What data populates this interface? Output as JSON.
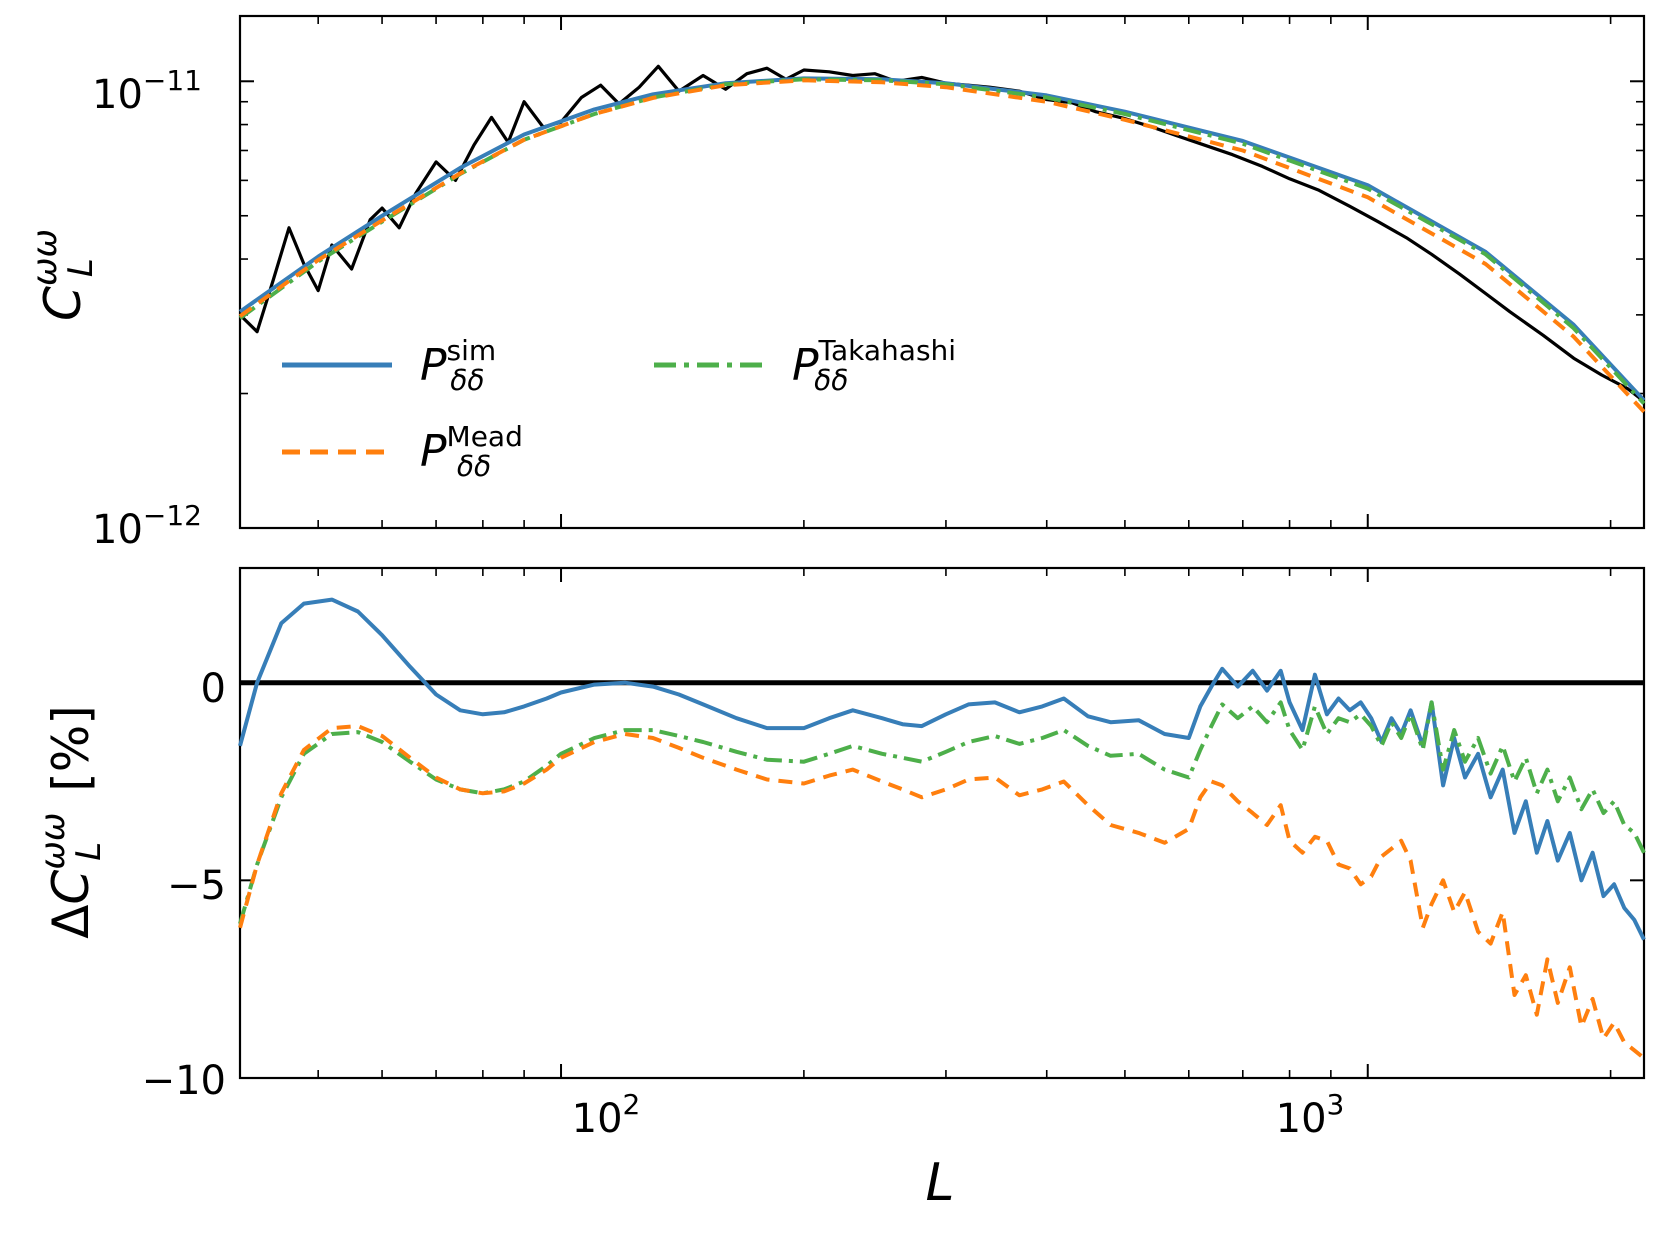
{
  "chart_data": [
    {
      "type": "line",
      "panel": "top",
      "yscale": "log",
      "xscale": "log",
      "xlim": [
        40,
        2200
      ],
      "ylim": [
        1e-12,
        1.4e-11
      ],
      "ylabel": {
        "base": "C",
        "sup": "ωω",
        "sub": "L"
      },
      "yticks": [
        {
          "value": 1e-11,
          "base": "10",
          "exp": "−11"
        },
        {
          "value": 1e-12,
          "base": "10",
          "exp": "−12"
        }
      ],
      "legend": {
        "placement": "lower-left",
        "entries": [
          {
            "key": "sim",
            "base": "P",
            "sup": "sim",
            "sub": "δδ"
          },
          {
            "key": "takahashi",
            "base": "P",
            "sup": "Takahashi",
            "sub": "δδ"
          },
          {
            "key": "mead",
            "base": "P",
            "sup": "Mead",
            "sub": "δδ"
          }
        ]
      },
      "series": [
        {
          "key": "measured",
          "name": "simulation measurement",
          "color": "#000000",
          "style": "solid",
          "x": [
            40,
            42,
            44,
            46,
            48,
            50,
            52,
            55,
            58,
            60,
            63,
            66,
            70,
            74,
            78,
            82,
            86,
            90,
            95,
            100,
            106,
            112,
            118,
            125,
            132,
            140,
            150,
            160,
            170,
            180,
            190,
            200,
            215,
            230,
            245,
            260,
            280,
            300,
            320,
            340,
            370,
            400,
            430,
            460,
            500,
            540,
            580,
            620,
            680,
            740,
            800,
            870,
            950,
            1030,
            1120,
            1200,
            1300,
            1400,
            1500,
            1650,
            1800,
            1950,
            2100,
            2200
          ],
          "y": [
            3e-12,
            2.75e-12,
            3.6e-12,
            4.7e-12,
            3.9e-12,
            3.4e-12,
            4.3e-12,
            3.8e-12,
            4.9e-12,
            5.2e-12,
            4.7e-12,
            5.6e-12,
            6.6e-12,
            6e-12,
            7.2e-12,
            8.3e-12,
            7.3e-12,
            9e-12,
            7.9e-12,
            8.1e-12,
            9.2e-12,
            9.8e-12,
            8.9e-12,
            9.7e-12,
            1.08e-11,
            9.5e-12,
            1.03e-11,
            9.6e-12,
            1.04e-11,
            1.07e-11,
            1.01e-11,
            1.06e-11,
            1.05e-11,
            1.03e-11,
            1.04e-11,
            1e-11,
            1.02e-11,
            9.9e-12,
            9.8e-12,
            9.7e-12,
            9.5e-12,
            9.1e-12,
            8.95e-12,
            8.55e-12,
            8.25e-12,
            7.9e-12,
            7.55e-12,
            7.25e-12,
            6.85e-12,
            6.45e-12,
            6.05e-12,
            5.7e-12,
            5.25e-12,
            4.85e-12,
            4.45e-12,
            4.1e-12,
            3.7e-12,
            3.35e-12,
            3.05e-12,
            2.7e-12,
            2.4e-12,
            2.2e-12,
            2.05e-12,
            1.92e-12
          ]
        },
        {
          "key": "sim",
          "name": "P sim",
          "color": "#377eb8",
          "style": "solid",
          "x": [
            40,
            50,
            60,
            75,
            90,
            110,
            130,
            160,
            200,
            250,
            300,
            400,
            500,
            700,
            1000,
            1400,
            1800,
            2200
          ],
          "y": [
            3.05e-12,
            4.05e-12,
            5e-12,
            6.4e-12,
            7.6e-12,
            8.65e-12,
            9.35e-12,
            9.9e-12,
            1.015e-11,
            1.01e-11,
            9.9e-12,
            9.3e-12,
            8.55e-12,
            7.35e-12,
            5.85e-12,
            4.15e-12,
            2.85e-12,
            1.93e-12
          ]
        },
        {
          "key": "takahashi",
          "name": "P Takahashi",
          "color": "#4daf4a",
          "style": "dashdot",
          "x": [
            40,
            50,
            60,
            75,
            90,
            110,
            130,
            160,
            200,
            250,
            300,
            400,
            500,
            700,
            1000,
            1400,
            1800,
            2200
          ],
          "y": [
            2.95e-12,
            3.95e-12,
            4.85e-12,
            6.2e-12,
            7.4e-12,
            8.45e-12,
            9.2e-12,
            9.85e-12,
            1.01e-11,
            1.005e-11,
            9.85e-12,
            9.2e-12,
            8.45e-12,
            7.25e-12,
            5.75e-12,
            4.1e-12,
            2.8e-12,
            1.9e-12
          ]
        },
        {
          "key": "mead",
          "name": "P Mead",
          "color": "#ff7f0e",
          "style": "dashed",
          "x": [
            40,
            50,
            60,
            75,
            90,
            110,
            130,
            160,
            200,
            250,
            300,
            400,
            500,
            700,
            1000,
            1400,
            1800,
            2200
          ],
          "y": [
            2.98e-12,
            3.98e-12,
            4.88e-12,
            6.22e-12,
            7.4e-12,
            8.45e-12,
            9.18e-12,
            9.8e-12,
            1.005e-11,
            9.95e-12,
            9.7e-12,
            9e-12,
            8.2e-12,
            7e-12,
            5.5e-12,
            3.9e-12,
            2.68e-12,
            1.82e-12
          ]
        }
      ]
    },
    {
      "type": "line",
      "panel": "bottom",
      "xscale": "log",
      "xlim": [
        40,
        2200
      ],
      "ylim": [
        -10,
        2.9
      ],
      "xlabel": "L",
      "ylabel": {
        "prefix": "Δ",
        "base": "C",
        "sup": "ωω",
        "sub": "L",
        "suffix": "[%]"
      },
      "yticks": [
        {
          "value": 0,
          "label": "0"
        },
        {
          "value": -5,
          "label": "−5"
        },
        {
          "value": -10,
          "label": "−10"
        }
      ],
      "xticks": [
        {
          "value": 100,
          "base": "10",
          "exp": "2"
        },
        {
          "value": 1000,
          "base": "10",
          "exp": "3"
        }
      ],
      "series": [
        {
          "key": "zero",
          "name": "zero line",
          "color": "#000000",
          "style": "solid",
          "x": [
            40,
            2200
          ],
          "y": [
            0,
            0
          ]
        },
        {
          "key": "sim",
          "name": "P sim",
          "color": "#377eb8",
          "style": "solid",
          "x": [
            40,
            42,
            45,
            48,
            52,
            56,
            60,
            65,
            70,
            75,
            80,
            85,
            90,
            96,
            100,
            110,
            120,
            130,
            140,
            150,
            165,
            180,
            200,
            215,
            230,
            250,
            265,
            280,
            300,
            320,
            345,
            370,
            395,
            420,
            450,
            480,
            520,
            560,
            600,
            620,
            640,
            660,
            690,
            720,
            750,
            780,
            800,
            830,
            860,
            890,
            920,
            950,
            980,
            1010,
            1040,
            1070,
            1100,
            1130,
            1170,
            1200,
            1240,
            1280,
            1320,
            1370,
            1420,
            1470,
            1520,
            1570,
            1620,
            1670,
            1720,
            1780,
            1840,
            1900,
            1960,
            2020,
            2080,
            2140,
            2200
          ],
          "y": [
            -1.6,
            0.0,
            1.5,
            2.0,
            2.1,
            1.8,
            1.2,
            0.4,
            -0.3,
            -0.7,
            -0.8,
            -0.75,
            -0.6,
            -0.4,
            -0.25,
            -0.05,
            0.0,
            -0.1,
            -0.3,
            -0.55,
            -0.9,
            -1.15,
            -1.15,
            -0.9,
            -0.7,
            -0.9,
            -1.05,
            -1.1,
            -0.8,
            -0.55,
            -0.5,
            -0.75,
            -0.6,
            -0.4,
            -0.85,
            -1.0,
            -0.95,
            -1.3,
            -1.4,
            -0.6,
            -0.1,
            0.35,
            -0.1,
            0.3,
            -0.2,
            0.3,
            -0.5,
            -1.2,
            0.2,
            -0.8,
            -0.4,
            -0.7,
            -0.5,
            -0.9,
            -1.5,
            -0.9,
            -1.3,
            -0.7,
            -1.6,
            -0.5,
            -2.6,
            -1.4,
            -2.4,
            -1.8,
            -2.9,
            -2.2,
            -3.8,
            -3.0,
            -4.3,
            -3.5,
            -4.5,
            -3.8,
            -5.0,
            -4.3,
            -5.4,
            -5.1,
            -5.7,
            -6.0,
            -6.5
          ]
        },
        {
          "key": "takahashi",
          "name": "P Takahashi",
          "color": "#4daf4a",
          "style": "dashdot",
          "x": [
            40,
            42,
            45,
            48,
            52,
            56,
            60,
            65,
            70,
            75,
            80,
            85,
            90,
            96,
            100,
            110,
            120,
            130,
            140,
            150,
            165,
            180,
            200,
            215,
            230,
            250,
            265,
            280,
            300,
            320,
            345,
            370,
            395,
            420,
            450,
            480,
            520,
            560,
            600,
            620,
            640,
            660,
            690,
            720,
            750,
            780,
            800,
            830,
            860,
            890,
            920,
            950,
            980,
            1010,
            1040,
            1070,
            1100,
            1130,
            1170,
            1200,
            1240,
            1280,
            1320,
            1370,
            1420,
            1470,
            1520,
            1570,
            1620,
            1670,
            1720,
            1780,
            1840,
            1900,
            1960,
            2020,
            2080,
            2140,
            2200
          ],
          "y": [
            -6.1,
            -4.6,
            -2.9,
            -1.8,
            -1.3,
            -1.25,
            -1.5,
            -2.0,
            -2.45,
            -2.7,
            -2.8,
            -2.7,
            -2.5,
            -2.1,
            -1.8,
            -1.4,
            -1.2,
            -1.2,
            -1.35,
            -1.5,
            -1.75,
            -1.95,
            -2.0,
            -1.8,
            -1.6,
            -1.8,
            -1.9,
            -2.0,
            -1.75,
            -1.5,
            -1.35,
            -1.55,
            -1.4,
            -1.2,
            -1.6,
            -1.85,
            -1.8,
            -2.2,
            -2.4,
            -1.7,
            -1.1,
            -0.55,
            -0.9,
            -0.6,
            -1.0,
            -0.5,
            -1.2,
            -1.7,
            -0.6,
            -1.3,
            -0.9,
            -1.0,
            -0.8,
            -1.1,
            -1.6,
            -1.0,
            -1.4,
            -0.8,
            -1.7,
            -0.5,
            -2.2,
            -1.2,
            -2.0,
            -1.4,
            -2.3,
            -1.6,
            -2.5,
            -1.9,
            -2.8,
            -2.2,
            -3.0,
            -2.4,
            -3.2,
            -2.7,
            -3.3,
            -3.0,
            -3.6,
            -3.8,
            -4.3
          ]
        },
        {
          "key": "mead",
          "name": "P Mead",
          "color": "#ff7f0e",
          "style": "dashed",
          "x": [
            40,
            42,
            45,
            48,
            52,
            56,
            60,
            65,
            70,
            75,
            80,
            85,
            90,
            96,
            100,
            110,
            120,
            130,
            140,
            150,
            165,
            180,
            200,
            215,
            230,
            250,
            265,
            280,
            300,
            320,
            345,
            370,
            395,
            420,
            450,
            480,
            520,
            560,
            600,
            620,
            640,
            660,
            690,
            720,
            750,
            780,
            800,
            830,
            860,
            890,
            920,
            950,
            980,
            1010,
            1040,
            1070,
            1100,
            1130,
            1170,
            1200,
            1240,
            1280,
            1320,
            1370,
            1420,
            1470,
            1520,
            1570,
            1620,
            1670,
            1720,
            1780,
            1840,
            1900,
            1960,
            2020,
            2080,
            2140,
            2200
          ],
          "y": [
            -6.2,
            -4.6,
            -2.8,
            -1.7,
            -1.15,
            -1.1,
            -1.35,
            -1.9,
            -2.4,
            -2.7,
            -2.8,
            -2.75,
            -2.55,
            -2.2,
            -1.9,
            -1.5,
            -1.3,
            -1.4,
            -1.65,
            -1.9,
            -2.2,
            -2.45,
            -2.55,
            -2.35,
            -2.2,
            -2.5,
            -2.7,
            -2.9,
            -2.7,
            -2.45,
            -2.4,
            -2.85,
            -2.7,
            -2.5,
            -3.1,
            -3.6,
            -3.8,
            -4.05,
            -3.7,
            -2.9,
            -2.5,
            -2.6,
            -3.0,
            -3.3,
            -3.6,
            -3.1,
            -4.0,
            -4.3,
            -3.9,
            -4.0,
            -4.6,
            -4.7,
            -5.1,
            -4.9,
            -4.4,
            -4.2,
            -4.0,
            -4.5,
            -6.2,
            -5.6,
            -5.0,
            -5.8,
            -5.3,
            -6.3,
            -6.6,
            -5.8,
            -7.9,
            -7.4,
            -8.4,
            -7.0,
            -8.1,
            -7.2,
            -8.7,
            -8.0,
            -9.0,
            -8.6,
            -9.1,
            -9.3,
            -9.5
          ]
        }
      ]
    }
  ]
}
